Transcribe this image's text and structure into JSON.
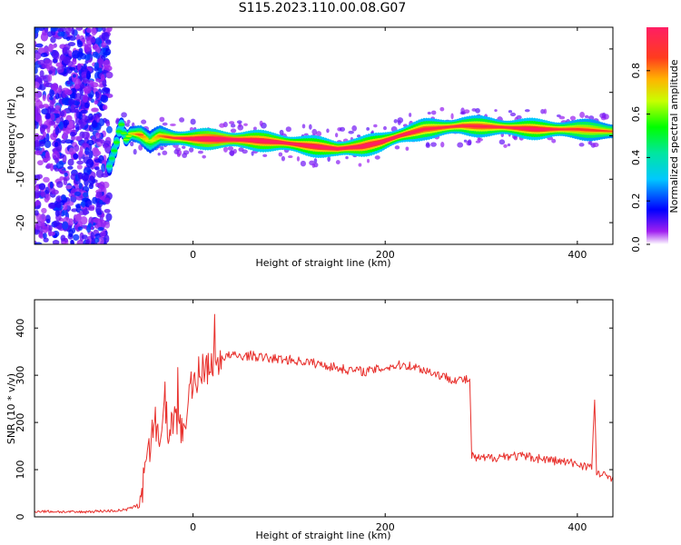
{
  "title": "S115.2023.110.00.08.G07",
  "chart_data": [
    {
      "type": "heatmap",
      "xlabel": "Height of straight line (km)",
      "ylabel": "Frequency (Hz)",
      "xlim": [
        -165,
        437
      ],
      "ylim": [
        -25,
        25
      ],
      "xticks": [
        0,
        200,
        400
      ],
      "yticks": [
        -20,
        -10,
        0,
        10,
        20
      ],
      "noise_region_x": [
        -165,
        -87
      ],
      "ridge": [
        {
          "x": -87,
          "y": -7,
          "a": 0.35
        },
        {
          "x": -80,
          "y": -2,
          "a": 0.45
        },
        {
          "x": -75,
          "y": 3,
          "a": 0.45
        },
        {
          "x": -70,
          "y": -1,
          "a": 0.5
        },
        {
          "x": -65,
          "y": 0.5,
          "a": 0.55
        },
        {
          "x": -55,
          "y": 0.3,
          "a": 0.7
        },
        {
          "x": -45,
          "y": -1.5,
          "a": 0.5
        },
        {
          "x": -35,
          "y": 0,
          "a": 0.65
        },
        {
          "x": -20,
          "y": -0.5,
          "a": 0.75
        },
        {
          "x": 0,
          "y": -0.7,
          "a": 0.9
        },
        {
          "x": 30,
          "y": -0.8,
          "a": 1.0
        },
        {
          "x": 60,
          "y": -1.0,
          "a": 0.9
        },
        {
          "x": 90,
          "y": -1.5,
          "a": 0.9
        },
        {
          "x": 120,
          "y": -2.3,
          "a": 0.85
        },
        {
          "x": 150,
          "y": -3.0,
          "a": 0.9
        },
        {
          "x": 175,
          "y": -2.5,
          "a": 0.9
        },
        {
          "x": 195,
          "y": -1.5,
          "a": 0.85
        },
        {
          "x": 215,
          "y": 0.0,
          "a": 0.85
        },
        {
          "x": 240,
          "y": 1.5,
          "a": 0.8
        },
        {
          "x": 280,
          "y": 2.3,
          "a": 0.8
        },
        {
          "x": 320,
          "y": 2.0,
          "a": 0.8
        },
        {
          "x": 360,
          "y": 1.5,
          "a": 0.85
        },
        {
          "x": 400,
          "y": 1.5,
          "a": 0.75
        },
        {
          "x": 437,
          "y": 1.0,
          "a": 0.7
        }
      ],
      "colorbar": {
        "label": "Normalized spectral amplitude",
        "range": [
          0,
          1
        ],
        "ticks": [
          "0.0",
          "0.2",
          "0.4",
          "0.6",
          "0.8"
        ]
      }
    },
    {
      "type": "line",
      "xlabel": "Height of straight line (km)",
      "ylabel": "SNR (10 * v/v)",
      "xlim": [
        -165,
        437
      ],
      "ylim": [
        0,
        460
      ],
      "xticks": [
        0,
        200,
        400
      ],
      "yticks": [
        0,
        100,
        200,
        300,
        400
      ],
      "color": "#e8302c",
      "series": [
        {
          "x": [
            -165,
            -140,
            -120,
            -100,
            -80,
            -70,
            -60,
            -55,
            -50,
            -45,
            -40,
            -35,
            -30,
            -25,
            -20,
            -15,
            -10,
            -5,
            -2,
            0,
            5,
            10,
            15,
            20,
            25,
            30,
            40,
            50,
            60,
            70,
            80,
            90,
            100,
            110,
            120,
            130,
            140,
            150,
            160,
            170,
            180,
            190,
            200,
            210,
            220,
            230,
            240,
            250,
            260,
            270,
            280,
            288,
            290,
            292,
            300,
            310,
            320,
            330,
            340,
            350,
            360,
            370,
            380,
            390,
            400,
            410,
            415,
            418,
            420,
            425,
            430,
            437
          ],
          "values": [
            12,
            11,
            10,
            12,
            13,
            15,
            22,
            40,
            80,
            140,
            200,
            160,
            230,
            180,
            210,
            200,
            190,
            260,
            300,
            280,
            300,
            310,
            320,
            330,
            335,
            338,
            342,
            340,
            342,
            338,
            336,
            334,
            333,
            330,
            328,
            324,
            320,
            316,
            312,
            310,
            308,
            312,
            316,
            320,
            322,
            318,
            312,
            305,
            298,
            292,
            290,
            290,
            130,
            125,
            123,
            125,
            128,
            130,
            128,
            127,
            124,
            121,
            118,
            115,
            112,
            108,
            105,
            240,
            95,
            88,
            86,
            85
          ]
        }
      ]
    }
  ]
}
